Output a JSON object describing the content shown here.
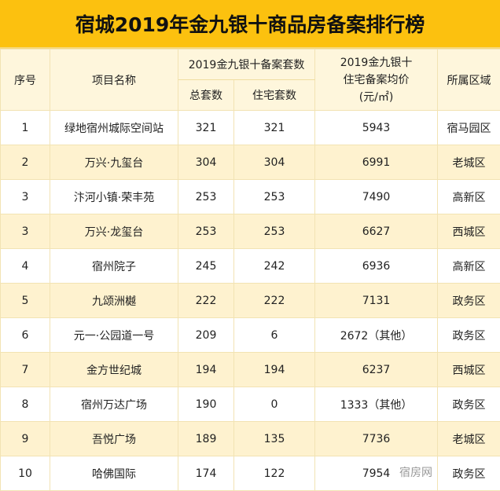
{
  "title": "宿城2019年金九银十商品房备案排行榜",
  "headers": {
    "rank": "序号",
    "name": "项目名称",
    "group": "2019金九银十备案套数",
    "total": "总套数",
    "residential": "住宅套数",
    "price_l1": "2019金九银十",
    "price_l2": "住宅备案均价",
    "price_l3": "(元/㎡)",
    "district": "所属区域"
  },
  "rows": [
    {
      "rank": "1",
      "name": "绿地宿州城际空间站",
      "total": "321",
      "residential": "321",
      "price": "5943",
      "district": "宿马园区"
    },
    {
      "rank": "2",
      "name": "万兴·九玺台",
      "total": "304",
      "residential": "304",
      "price": "6991",
      "district": "老城区"
    },
    {
      "rank": "3",
      "name": "汴河小镇·荣丰苑",
      "total": "253",
      "residential": "253",
      "price": "7490",
      "district": "高新区"
    },
    {
      "rank": "3",
      "name": "万兴·龙玺台",
      "total": "253",
      "residential": "253",
      "price": "6627",
      "district": "西城区"
    },
    {
      "rank": "4",
      "name": "宿州院子",
      "total": "245",
      "residential": "242",
      "price": "6936",
      "district": "高新区"
    },
    {
      "rank": "5",
      "name": "九颂洲樾",
      "total": "222",
      "residential": "222",
      "price": "7131",
      "district": "政务区"
    },
    {
      "rank": "6",
      "name": "元一·公园道一号",
      "total": "209",
      "residential": "6",
      "price": "2672（其他）",
      "district": "政务区"
    },
    {
      "rank": "7",
      "name": "金方世纪城",
      "total": "194",
      "residential": "194",
      "price": "6237",
      "district": "西城区"
    },
    {
      "rank": "8",
      "name": "宿州万达广场",
      "total": "190",
      "residential": "0",
      "price": "1333（其他）",
      "district": "政务区"
    },
    {
      "rank": "9",
      "name": "吾悦广场",
      "total": "189",
      "residential": "135",
      "price": "7736",
      "district": "老城区"
    },
    {
      "rank": "10",
      "name": "哈佛国际",
      "total": "174",
      "residential": "122",
      "price": "7954",
      "district": "政务区"
    }
  ],
  "watermark": "宿房网"
}
